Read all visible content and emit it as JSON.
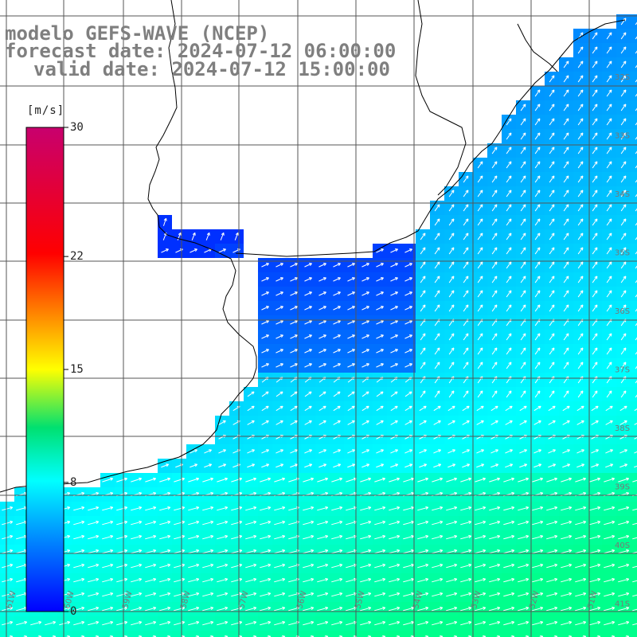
{
  "header": {
    "line1": "modelo GEFS-WAVE (NCEP)",
    "line2": "forecast date: 2024-07-12 06:00:00",
    "line3": "valid date: 2024-07-12 15:00:00"
  },
  "colorbar": {
    "unit": "[m/s]",
    "ticks": [
      "30",
      "22",
      "15",
      "8",
      "0"
    ],
    "tick_values": [
      30,
      22,
      15,
      8,
      0
    ],
    "range": [
      0,
      30
    ],
    "colors": [
      "#0000ff",
      "#0080ff",
      "#00ffff",
      "#00ff00",
      "#ffff00",
      "#ff8000",
      "#ff0000",
      "#c8006e"
    ]
  },
  "grid_labels": {
    "lat": [
      "32S",
      "33S",
      "34S",
      "35S",
      "36S",
      "37S",
      "38S",
      "39S",
      "40S",
      "41S"
    ],
    "lon": [
      "61W",
      "60W",
      "59W",
      "58W",
      "57W",
      "56W",
      "55W",
      "54W",
      "53W",
      "52W",
      "51W"
    ]
  },
  "map_style": {
    "land": "#ffffff",
    "coast": "#000000",
    "grid": "#555555",
    "arrow": "#ffffff"
  }
}
